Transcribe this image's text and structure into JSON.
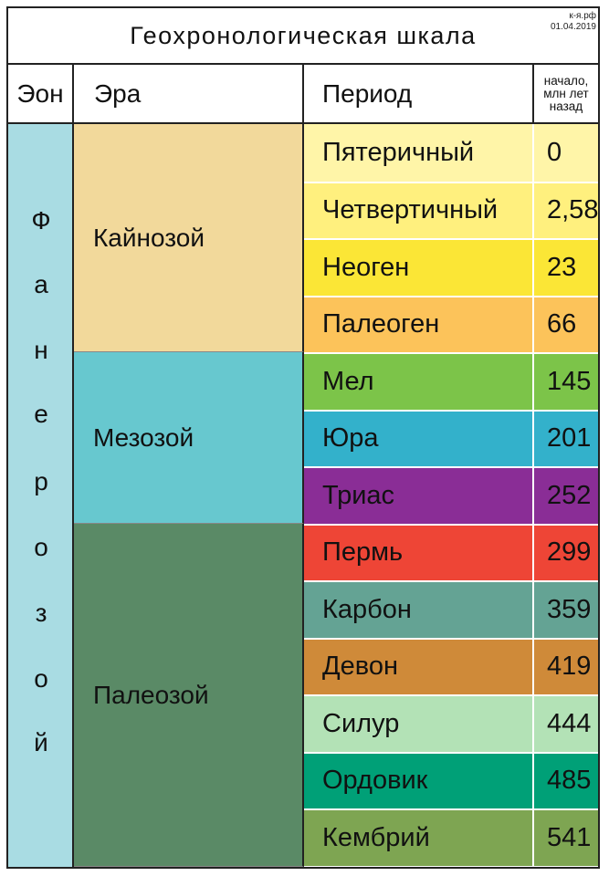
{
  "title": "Геохронологическая шкала",
  "watermark": {
    "site": "к-я.рф",
    "date": "01.04.2019"
  },
  "header": {
    "eon": "Эон",
    "era": "Эра",
    "period": "Период",
    "start_line1": "начало,",
    "start_line2": "млн лет",
    "start_line3": "назад"
  },
  "eon": {
    "name": "Фанерозой",
    "letters": [
      "Ф",
      "а",
      "н",
      "е",
      "р",
      "о",
      "з",
      "о",
      "й"
    ],
    "color": "#a9dce3"
  },
  "eras": [
    {
      "name": "Кайнозой",
      "color": "#f2d99b"
    },
    {
      "name": "Мезозой",
      "color": "#67c8cf"
    },
    {
      "name": "Палеозой",
      "color": "#5a8a66"
    }
  ],
  "periods": [
    {
      "name": "Пятеричный",
      "start": "0",
      "color": "#fff5a8"
    },
    {
      "name": "Четвертичный",
      "start": "2,58",
      "color": "#fff07e"
    },
    {
      "name": "Неоген",
      "start": "23",
      "color": "#fbe636"
    },
    {
      "name": "Палеоген",
      "start": "66",
      "color": "#fcc35a"
    },
    {
      "name": "Мел",
      "start": "145",
      "color": "#7cc449"
    },
    {
      "name": "Юра",
      "start": "201",
      "color": "#33b1cb"
    },
    {
      "name": "Триас",
      "start": "252",
      "color": "#8a2d96"
    },
    {
      "name": "Пермь",
      "start": "299",
      "color": "#ee4536"
    },
    {
      "name": "Карбон",
      "start": "359",
      "color": "#64a394"
    },
    {
      "name": "Девон",
      "start": "419",
      "color": "#cf8a39"
    },
    {
      "name": "Силур",
      "start": "444",
      "color": "#b3e2b6"
    },
    {
      "name": "Ордовик",
      "start": "485",
      "color": "#00a077"
    },
    {
      "name": "Кембрий",
      "start": "541",
      "color": "#7ea552"
    }
  ]
}
